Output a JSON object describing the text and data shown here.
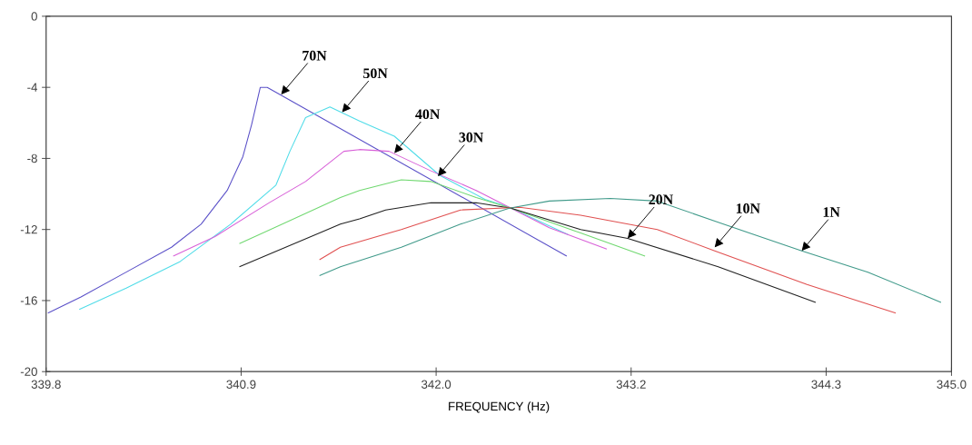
{
  "chart_data": {
    "type": "line",
    "xlabel": "FREQUENCY (Hz)",
    "xlim": [
      339.8,
      345.0
    ],
    "xticks": [
      {
        "value": 339.8,
        "label": "339.8"
      },
      {
        "value": 340.92,
        "label": "340.9"
      },
      {
        "value": 342.04,
        "label": "342.0"
      },
      {
        "value": 343.16,
        "label": "343.2"
      },
      {
        "value": 344.28,
        "label": "344.3"
      },
      {
        "value": 345.0,
        "label": "345.0"
      }
    ],
    "ylim": [
      -20,
      0
    ],
    "yticks": [
      -20,
      -16,
      -12,
      -8,
      -4,
      0
    ],
    "series": [
      {
        "color": "#5a50c8",
        "x": [
          339.81,
          340.0,
          340.26,
          340.52,
          340.69,
          340.84,
          340.93,
          340.98,
          341.03,
          341.07,
          342.79
        ],
        "values": [
          -16.7,
          -15.8,
          -14.4,
          -13.0,
          -11.7,
          -9.8,
          -7.9,
          -6.1,
          -4.0,
          -4.0,
          -13.5
        ]
      },
      {
        "color": "#50dce8",
        "x": [
          339.99,
          340.26,
          340.57,
          340.86,
          341.12,
          341.2,
          341.29,
          341.43,
          341.6,
          341.8,
          342.06,
          342.32,
          342.46,
          342.8
        ],
        "values": [
          -16.5,
          -15.3,
          -13.8,
          -11.7,
          -9.5,
          -7.6,
          -5.7,
          -5.1,
          -5.9,
          -6.75,
          -8.95,
          -10.3,
          -10.75,
          -12.3
        ]
      },
      {
        "color": "#d860d8",
        "x": [
          340.53,
          340.77,
          341.08,
          341.29,
          341.51,
          341.6,
          341.77,
          342.01,
          342.27,
          342.47,
          342.69,
          343.02
        ],
        "values": [
          -13.5,
          -12.4,
          -10.5,
          -9.3,
          -7.6,
          -7.5,
          -7.6,
          -8.7,
          -9.8,
          -10.8,
          -11.9,
          -13.1
        ]
      },
      {
        "color": "#70d870",
        "x": [
          340.91,
          341.49,
          341.6,
          341.84,
          342.01,
          342.27,
          342.47,
          342.87,
          343.24
        ],
        "values": [
          -12.8,
          -10.2,
          -9.8,
          -9.2,
          -9.3,
          -10.2,
          -10.8,
          -12.2,
          -13.5
        ]
      },
      {
        "color": "#202020",
        "x": [
          340.91,
          341.49,
          341.6,
          341.75,
          342.01,
          342.27,
          342.47,
          342.87,
          343.14,
          343.66,
          344.22
        ],
        "values": [
          -14.1,
          -11.7,
          -11.4,
          -10.9,
          -10.5,
          -10.5,
          -10.8,
          -12.0,
          -12.5,
          -14.1,
          -16.1
        ]
      },
      {
        "color": "#e05050",
        "x": [
          341.37,
          341.49,
          341.84,
          342.18,
          342.52,
          342.87,
          343.31,
          343.64,
          344.17,
          344.68
        ],
        "values": [
          -13.7,
          -13.0,
          -12.0,
          -10.9,
          -10.75,
          -11.2,
          -12.0,
          -13.2,
          -15.1,
          -16.7
        ]
      },
      {
        "color": "#409a8a",
        "x": [
          341.37,
          341.49,
          341.84,
          342.18,
          342.46,
          342.69,
          343.04,
          343.31,
          343.66,
          344.14,
          344.52,
          344.94
        ],
        "values": [
          -14.6,
          -14.1,
          -13.0,
          -11.7,
          -10.8,
          -10.4,
          -10.25,
          -10.4,
          -11.6,
          -13.2,
          -14.4,
          -16.1
        ]
      }
    ],
    "annotations": [
      {
        "text": "70N",
        "x": 341.15,
        "y": -4.4
      },
      {
        "text": "50N",
        "x": 341.5,
        "y": -5.4
      },
      {
        "text": "40N",
        "x": 341.8,
        "y": -7.7
      },
      {
        "text": "30N",
        "x": 342.05,
        "y": -9.0
      },
      {
        "text": "20N",
        "x": 343.14,
        "y": -12.5
      },
      {
        "text": "10N",
        "x": 343.64,
        "y": -13.0
      },
      {
        "text": "1N",
        "x": 344.14,
        "y": -13.2
      }
    ]
  }
}
